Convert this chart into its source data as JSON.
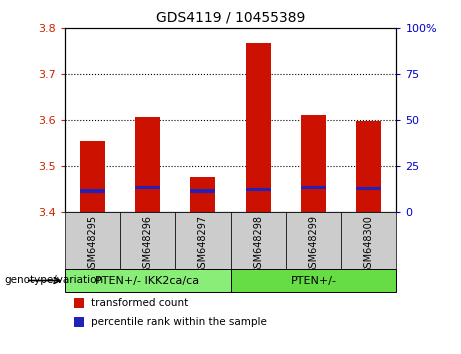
{
  "title": "GDS4119 / 10455389",
  "categories": [
    "GSM648295",
    "GSM648296",
    "GSM648297",
    "GSM648298",
    "GSM648299",
    "GSM648300"
  ],
  "red_values": [
    3.555,
    3.608,
    3.478,
    3.768,
    3.612,
    3.598
  ],
  "blue_values": [
    3.442,
    3.45,
    3.443,
    3.446,
    3.45,
    3.448
  ],
  "ymin": 3.4,
  "ymax": 3.8,
  "yticks": [
    3.4,
    3.5,
    3.6,
    3.7,
    3.8
  ],
  "right_tick_vals": [
    3.4,
    3.5,
    3.6,
    3.7,
    3.8
  ],
  "right_tick_labels": [
    "0",
    "25",
    "50",
    "75",
    "100%"
  ],
  "left_tick_color": "#cc2200",
  "right_tick_color": "#0000cc",
  "bar_color_red": "#cc1100",
  "bar_color_blue": "#2222bb",
  "blue_bar_height": 0.008,
  "groups": [
    {
      "label": "PTEN+/- IKK2ca/ca",
      "indices": [
        0,
        1,
        2
      ],
      "color": "#88ee77"
    },
    {
      "label": "PTEN+/-",
      "indices": [
        3,
        4,
        5
      ],
      "color": "#66dd44"
    }
  ],
  "group_label_prefix": "genotype/variation",
  "legend_items": [
    {
      "label": "transformed count",
      "color": "#cc1100"
    },
    {
      "label": "percentile rank within the sample",
      "color": "#2222bb"
    }
  ],
  "bar_width": 0.45,
  "grid_dotted_at": [
    3.5,
    3.6,
    3.7
  ],
  "bg_color_xtick": "#cccccc"
}
